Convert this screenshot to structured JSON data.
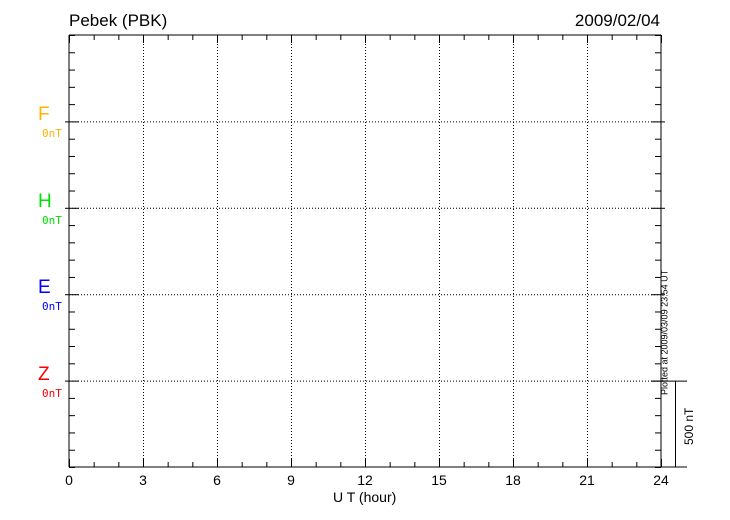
{
  "header": {
    "station": "Pebek (PBK)",
    "date": "2009/02/04"
  },
  "footer_note": "Plotted at 2009/03/09 23:54 UT",
  "chart_data": {
    "type": "line",
    "title": "Pebek (PBK)",
    "xlabel": "U T (hour)",
    "xlim": [
      0,
      24
    ],
    "xticks": [
      "0",
      "3",
      "6",
      "9",
      "12",
      "15",
      "18",
      "21",
      "24"
    ],
    "grid": true,
    "scale_bar": "500 nT",
    "series": [
      {
        "name": "F",
        "baseline": "0nT",
        "color": "#FFB400",
        "values": []
      },
      {
        "name": "H",
        "baseline": "0nT",
        "color": "#00E000",
        "values": []
      },
      {
        "name": "E",
        "baseline": "0nT",
        "color": "#0000FF",
        "values": []
      },
      {
        "name": "Z",
        "baseline": "0nT",
        "color": "#FF0000",
        "values": []
      }
    ]
  }
}
